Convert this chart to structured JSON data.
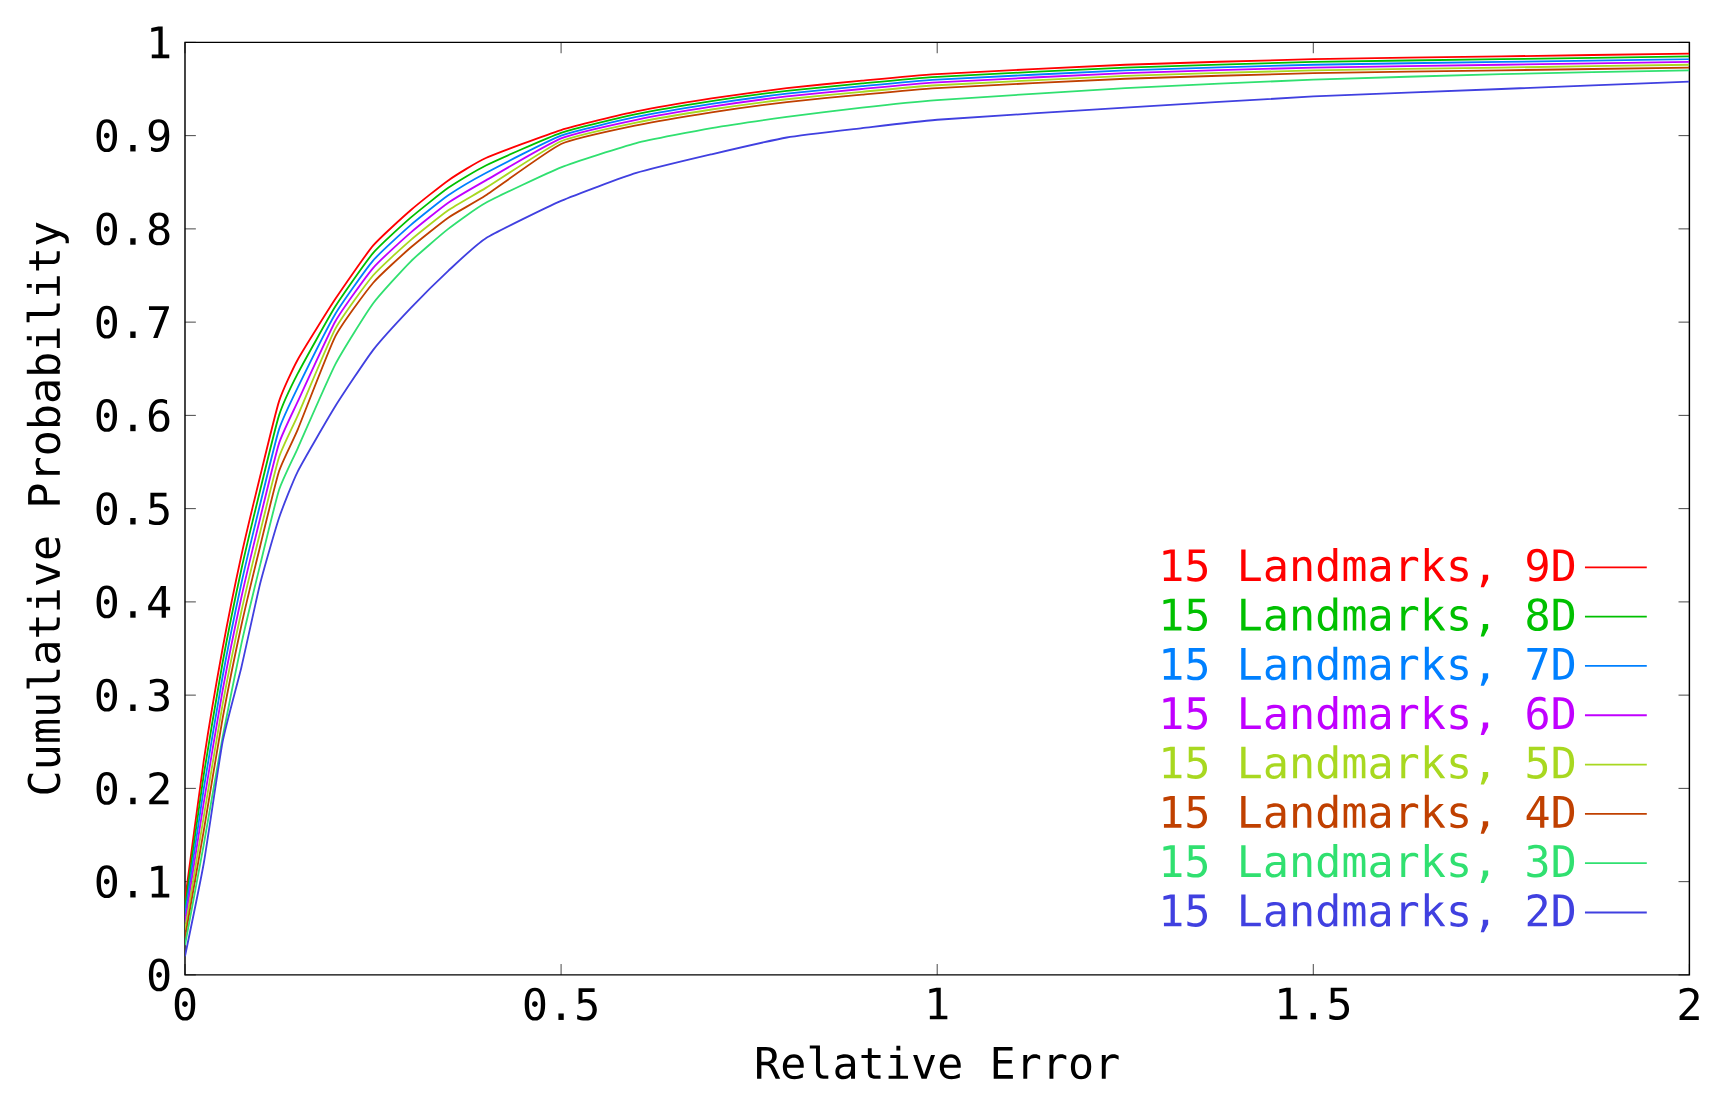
{
  "chart_data": {
    "type": "line",
    "xlabel": "Relative Error",
    "ylabel": "Cumulative Probability",
    "x": [
      0,
      0.025,
      0.05,
      0.075,
      0.1,
      0.125,
      0.15,
      0.2,
      0.25,
      0.3,
      0.35,
      0.4,
      0.5,
      0.6,
      0.7,
      0.8,
      0.9,
      1.0,
      1.25,
      1.5,
      1.75,
      2.0
    ],
    "xlim": [
      0,
      2
    ],
    "ylim": [
      0,
      1
    ],
    "xticks": [
      0,
      0.5,
      1,
      1.5,
      2
    ],
    "yticks": [
      0,
      0.1,
      0.2,
      0.3,
      0.4,
      0.5,
      0.6,
      0.7,
      0.8,
      0.9,
      1
    ],
    "legend": "bottom right",
    "series": [
      {
        "name": "15 Landmarks, 9D",
        "color": "#ff0000",
        "values": [
          0.08,
          0.23,
          0.35,
          0.45,
          0.535,
          0.615,
          0.66,
          0.725,
          0.782,
          0.82,
          0.852,
          0.876,
          0.906,
          0.926,
          0.94,
          0.951,
          0.959,
          0.966,
          0.976,
          0.982,
          0.985,
          0.988
        ]
      },
      {
        "name": "15 Landmarks, 8D",
        "color": "#00c000",
        "values": [
          0.072,
          0.215,
          0.335,
          0.435,
          0.52,
          0.6,
          0.645,
          0.717,
          0.774,
          0.812,
          0.844,
          0.868,
          0.903,
          0.923,
          0.937,
          0.948,
          0.956,
          0.963,
          0.973,
          0.979,
          0.982,
          0.985
        ]
      },
      {
        "name": "15 Landmarks, 7D",
        "color": "#0080ff",
        "values": [
          0.064,
          0.2,
          0.32,
          0.42,
          0.505,
          0.585,
          0.63,
          0.709,
          0.766,
          0.804,
          0.836,
          0.86,
          0.9,
          0.92,
          0.934,
          0.945,
          0.953,
          0.96,
          0.97,
          0.976,
          0.979,
          0.982
        ]
      },
      {
        "name": "15 Landmarks, 6D",
        "color": "#c000ff",
        "values": [
          0.056,
          0.185,
          0.305,
          0.405,
          0.49,
          0.57,
          0.615,
          0.701,
          0.758,
          0.796,
          0.828,
          0.852,
          0.897,
          0.917,
          0.931,
          0.942,
          0.95,
          0.957,
          0.967,
          0.973,
          0.976,
          0.979
        ]
      },
      {
        "name": "15 Landmarks, 5D",
        "color": "#a8d820",
        "values": [
          0.048,
          0.17,
          0.29,
          0.39,
          0.475,
          0.555,
          0.6,
          0.693,
          0.75,
          0.788,
          0.82,
          0.844,
          0.894,
          0.914,
          0.928,
          0.939,
          0.947,
          0.954,
          0.964,
          0.97,
          0.973,
          0.976
        ]
      },
      {
        "name": "15 Landmarks, 4D",
        "color": "#c04000",
        "values": [
          0.04,
          0.155,
          0.275,
          0.375,
          0.46,
          0.54,
          0.585,
          0.685,
          0.742,
          0.78,
          0.812,
          0.836,
          0.891,
          0.911,
          0.925,
          0.936,
          0.944,
          0.951,
          0.961,
          0.967,
          0.97,
          0.973
        ]
      },
      {
        "name": "15 Landmarks, 3D",
        "color": "#30e070",
        "values": [
          0.032,
          0.14,
          0.255,
          0.355,
          0.44,
          0.52,
          0.565,
          0.655,
          0.72,
          0.765,
          0.8,
          0.828,
          0.866,
          0.892,
          0.908,
          0.92,
          0.93,
          0.938,
          0.951,
          0.96,
          0.966,
          0.97
        ]
      },
      {
        "name": "15 Landmarks, 2D",
        "color": "#4040e0",
        "values": [
          0.02,
          0.12,
          0.25,
          0.33,
          0.42,
          0.49,
          0.54,
          0.61,
          0.67,
          0.715,
          0.755,
          0.79,
          0.83,
          0.86,
          0.88,
          0.898,
          0.908,
          0.917,
          0.93,
          0.942,
          0.95,
          0.958
        ]
      }
    ]
  }
}
